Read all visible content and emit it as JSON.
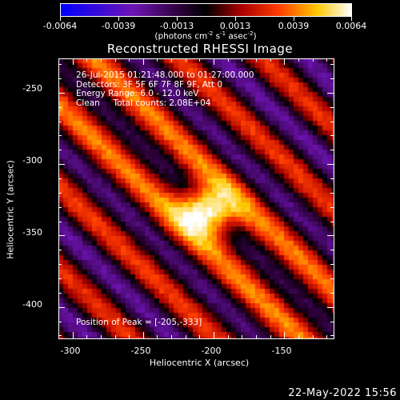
{
  "colorbar": {
    "ticks": [
      "-0.0064",
      "-0.0039",
      "-0.0013",
      "0.0013",
      "0.0039",
      "0.0064"
    ],
    "units_main": "(photons cm",
    "units_exp1": "-2",
    "units_mid": " s",
    "units_exp2": "-1",
    "units_end": " asec",
    "units_exp3": "-2",
    "units_close": ")"
  },
  "title": "Reconstructed RHESSI Image",
  "info": {
    "line1": "26-Jul-2015 01:21:48.000 to 01:27:00.000",
    "line2": "Detectors: 3F 5F 6F 7F 8F 9F, Att 0",
    "line3": "Energy Range: 6.0 - 12.0 keV",
    "line4": "Clean     Total counts: 2.08E+04"
  },
  "peak_text": "Position of Peak = [-205,-333]",
  "footer": "22-May-2022 15:56",
  "chart_data": {
    "type": "heatmap",
    "title": "Reconstructed RHESSI Image",
    "xlabel": "Heliocentric X (arcsec)",
    "ylabel": "Heliocentric Y (arcsec)",
    "xlim": [
      -310,
      -115
    ],
    "ylim": [
      -422,
      -226
    ],
    "x_ticks": [
      "-300",
      "-250",
      "-200",
      "-150"
    ],
    "y_ticks": [
      "-250",
      "-300",
      "-350",
      "-400"
    ],
    "x_tick_values": [
      -300,
      -250,
      -200,
      -150
    ],
    "y_tick_values": [
      -250,
      -300,
      -350,
      -400
    ],
    "peak_position": [
      -205,
      -333
    ],
    "color_range": [
      -0.0064,
      0.0064
    ],
    "colormap": "hot-cold (blue-purple-black-red-orange-yellow-white)"
  }
}
